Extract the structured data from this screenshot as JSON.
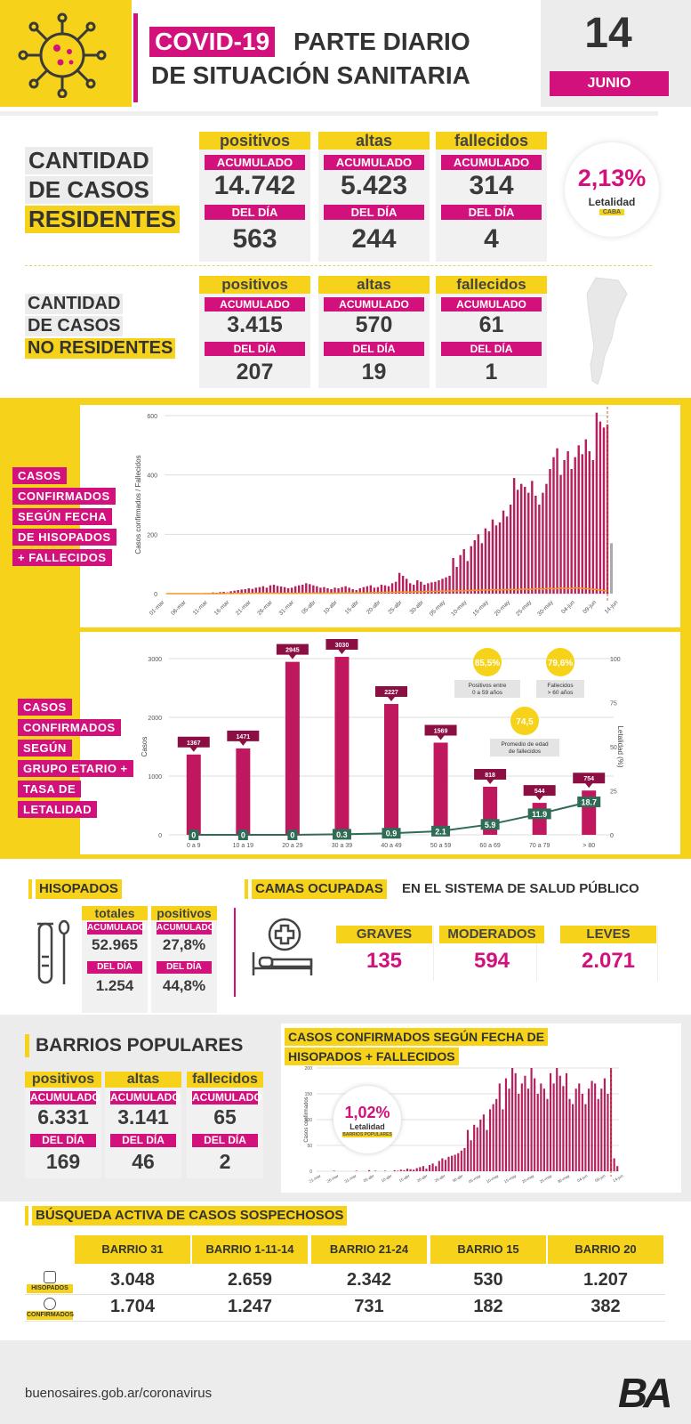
{
  "header": {
    "tag": "COVID-19",
    "title1": "PARTE DIARIO",
    "title2": "DE SITUACIÓN SANITARIA",
    "day": "14",
    "month": "JUNIO"
  },
  "residentes": {
    "title": [
      "CANTIDAD",
      "DE CASOS",
      "RESIDENTES"
    ],
    "cols": [
      {
        "head": "positivos",
        "acum_label": "ACUMULADO",
        "acum": "14.742",
        "dia_label": "DEL DÍA",
        "dia": "563"
      },
      {
        "head": "altas",
        "acum_label": "ACUMULADO",
        "acum": "5.423",
        "dia_label": "DEL DÍA",
        "dia": "244"
      },
      {
        "head": "fallecidos",
        "acum_label": "ACUMULADO",
        "acum": "314",
        "dia_label": "DEL DÍA",
        "dia": "4"
      }
    ],
    "letalidad": {
      "value": "2,13%",
      "label": "Letalidad",
      "tag": "CABA"
    }
  },
  "no_residentes": {
    "title": [
      "CANTIDAD",
      "DE CASOS",
      "NO RESIDENTES"
    ],
    "cols": [
      {
        "head": "positivos",
        "acum_label": "ACUMULADO",
        "acum": "3.415",
        "dia_label": "DEL DÍA",
        "dia": "207"
      },
      {
        "head": "altas",
        "acum_label": "ACUMULADO",
        "acum": "570",
        "dia_label": "DEL DÍA",
        "dia": "19"
      },
      {
        "head": "fallecidos",
        "acum_label": "ACUMULADO",
        "acum": "61",
        "dia_label": "DEL DÍA",
        "dia": "1"
      }
    ]
  },
  "chart1_label": [
    "CASOS",
    "CONFIRMADOS",
    "SEGÚN FECHA",
    "DE HISOPADOS",
    "+ FALLECIDOS"
  ],
  "chart2_label": [
    "CASOS",
    "CONFIRMADOS",
    "SEGÚN",
    "GRUPO ETARIO +",
    "TASA DE",
    "LETALIDAD"
  ],
  "chart_data": [
    {
      "type": "bar",
      "ylabel": "Casos confirmados / Fallecidos",
      "ylim": [
        0,
        600
      ],
      "yticks": [
        0,
        200,
        400,
        600
      ],
      "xticks": [
        "01-mar",
        "06-mar",
        "11-mar",
        "16-mar",
        "21-mar",
        "26-mar",
        "31-mar",
        "05-abr",
        "10-abr",
        "15-abr",
        "20-abr",
        "25-abr",
        "30-abr",
        "05-may",
        "10-may",
        "15-may",
        "20-may",
        "25-may",
        "30-may",
        "04-jun",
        "09-jun",
        "14-jun"
      ],
      "values": [
        0,
        0,
        0,
        0,
        0,
        0,
        0,
        0,
        0,
        1,
        0,
        2,
        2,
        4,
        3,
        5,
        6,
        4,
        8,
        10,
        12,
        14,
        15,
        18,
        16,
        20,
        22,
        25,
        20,
        28,
        30,
        26,
        24,
        22,
        18,
        20,
        25,
        28,
        30,
        35,
        32,
        28,
        25,
        20,
        22,
        18,
        15,
        20,
        18,
        22,
        25,
        20,
        15,
        12,
        18,
        22,
        25,
        28,
        20,
        22,
        30,
        28,
        25,
        35,
        40,
        70,
        60,
        50,
        35,
        30,
        45,
        40,
        30,
        35,
        38,
        40,
        45,
        50,
        55,
        60,
        120,
        90,
        130,
        150,
        110,
        160,
        180,
        200,
        170,
        220,
        210,
        250,
        230,
        240,
        280,
        260,
        300,
        390,
        350,
        370,
        360,
        340,
        380,
        330,
        300,
        340,
        370,
        420,
        460,
        490,
        400,
        450,
        480,
        420,
        460,
        500,
        470,
        520,
        480,
        450,
        610,
        580,
        560,
        570
      ],
      "deaths": [
        0,
        0,
        0,
        0,
        0,
        0,
        0,
        0,
        0,
        0,
        0,
        0,
        0,
        0,
        0,
        0,
        0,
        1,
        0,
        1,
        1,
        0,
        1,
        1,
        1,
        2,
        1,
        2,
        1,
        2,
        1,
        2,
        1,
        1,
        2,
        1,
        1,
        2,
        1,
        2,
        1,
        2,
        2,
        1,
        2,
        2,
        1,
        2,
        2,
        3,
        2,
        3,
        2,
        3,
        3,
        2,
        3,
        3,
        4,
        3,
        4,
        4,
        5,
        4,
        5,
        6,
        5,
        6,
        5,
        6,
        7,
        6,
        7,
        8,
        7,
        8,
        8,
        9,
        8,
        9,
        10,
        9,
        10,
        9,
        11,
        10,
        12,
        11,
        12,
        13,
        12,
        14,
        13,
        12,
        14,
        13,
        15,
        14,
        13,
        15,
        16,
        14,
        15,
        17,
        16,
        15,
        17,
        18,
        16,
        17,
        19,
        18,
        17,
        18,
        20,
        19,
        18,
        17,
        16,
        15,
        14,
        12,
        10,
        8
      ],
      "series_names": [
        "Casos confirmados",
        "Fallecidos"
      ]
    },
    {
      "type": "bar",
      "ylabel": "Casos",
      "y2label": "Letalidad (%)",
      "ylim": [
        0,
        3000
      ],
      "y2lim": [
        0,
        100
      ],
      "yticks": [
        0,
        1000,
        2000,
        3000
      ],
      "y2ticks": [
        0,
        25,
        50,
        75,
        100
      ],
      "categories": [
        "0 a 9",
        "10 a 19",
        "20 a 29",
        "30 a 39",
        "40 a 49",
        "50 a 59",
        "60 a 69",
        "70 a 79",
        "> 80"
      ],
      "values": [
        1367,
        1471,
        2945,
        3030,
        2227,
        1569,
        818,
        544,
        754
      ],
      "letalidad": [
        0,
        0,
        0,
        0.3,
        0.9,
        2.1,
        5.9,
        11.9,
        18.7
      ],
      "letalidad_labels": [
        "0",
        "0",
        "0",
        "0.3",
        "0.9",
        "2.1",
        "5.9",
        "11.9",
        "18.7"
      ],
      "annotations": [
        {
          "value": "85,5%",
          "text": [
            "Positivos entre",
            "0 a 59 años"
          ]
        },
        {
          "value": "79,6%",
          "text": [
            "Fallecidos",
            "> 60 años"
          ]
        },
        {
          "value": "74,5",
          "text": [
            "Promedio de edad",
            "de fallecidos"
          ]
        }
      ]
    },
    {
      "type": "bar",
      "ylabel": "Casos confirmados",
      "ylim": [
        0,
        200
      ],
      "yticks": [
        0,
        50,
        100,
        150,
        200
      ],
      "xticks": [
        "21-mar",
        "26-mar",
        "31-mar",
        "05-abr",
        "10-abr",
        "15-abr",
        "20-abr",
        "25-abr",
        "30-abr",
        "05-may",
        "10-may",
        "15-may",
        "20-may",
        "25-may",
        "30-may",
        "04-jun",
        "09-jun",
        "14-jun"
      ],
      "values": [
        0,
        0,
        0,
        0,
        0,
        1,
        0,
        0,
        0,
        0,
        0,
        0,
        1,
        0,
        0,
        0,
        2,
        0,
        1,
        0,
        0,
        1,
        0,
        0,
        2,
        1,
        3,
        2,
        5,
        4,
        3,
        6,
        8,
        10,
        5,
        12,
        15,
        10,
        20,
        25,
        22,
        28,
        30,
        32,
        35,
        40,
        45,
        80,
        60,
        90,
        85,
        100,
        110,
        80,
        120,
        130,
        140,
        170,
        120,
        180,
        160,
        200,
        190,
        150,
        170,
        185,
        160,
        200,
        180,
        150,
        170,
        160,
        140,
        190,
        170,
        200,
        185,
        165,
        190,
        140,
        130,
        160,
        170,
        150,
        130,
        160,
        175,
        170,
        140,
        160,
        180,
        150,
        200,
        25,
        10
      ],
      "letalidad": {
        "value": "1,02%",
        "label": "Letalidad",
        "tag": "BARRIOS POPULARES"
      }
    }
  ],
  "hisopados": {
    "title": "HISOPADOS",
    "cols": [
      {
        "head": "totales",
        "acum_label": "ACUMULADO",
        "acum": "52.965",
        "dia_label": "DEL DÍA",
        "dia": "1.254"
      },
      {
        "head": "positivos",
        "acum_label": "ACUMULADO",
        "acum": "27,8%",
        "dia_label": "DEL DÍA",
        "dia": "44,8%"
      }
    ]
  },
  "camas": {
    "title": "CAMAS OCUPADAS",
    "subtitle": "EN EL SISTEMA DE SALUD PÚBLICO",
    "items": [
      {
        "label": "GRAVES",
        "value": "135"
      },
      {
        "label": "MODERADOS",
        "value": "594"
      },
      {
        "label": "LEVES",
        "value": "2.071"
      }
    ]
  },
  "barrios": {
    "title": "BARRIOS POPULARES",
    "chart_title": [
      "CASOS CONFIRMADOS SEGÚN FECHA DE",
      "HISOPADOS + FALLECIDOS"
    ],
    "cols": [
      {
        "head": "positivos",
        "acum_label": "ACUMULADO",
        "acum": "6.331",
        "dia_label": "DEL DÍA",
        "dia": "169"
      },
      {
        "head": "altas",
        "acum_label": "ACUMULADO",
        "acum": "3.141",
        "dia_label": "DEL DÍA",
        "dia": "46"
      },
      {
        "head": "fallecidos",
        "acum_label": "ACUMULADO",
        "acum": "65",
        "dia_label": "DEL DÍA",
        "dia": "2"
      }
    ]
  },
  "busqueda": {
    "title": "BÚSQUEDA ACTIVA DE CASOS SOSPECHOSOS",
    "columns": [
      "BARRIO 31",
      "BARRIO 1-11-14",
      "BARRIO 21-24",
      "BARRIO 15",
      "BARRIO 20"
    ],
    "rows": [
      {
        "label": "HISOPADOS",
        "values": [
          "3.048",
          "2.659",
          "2.342",
          "530",
          "1.207"
        ]
      },
      {
        "label": "CONFIRMADOS",
        "values": [
          "1.704",
          "1.247",
          "731",
          "182",
          "382"
        ]
      }
    ]
  },
  "footer": {
    "url": "buenosaires.gob.ar/coronavirus",
    "logo": "BA"
  },
  "colors": {
    "accent": "#d3117c",
    "yellow": "#f6d21a",
    "bar": "#b51f5c",
    "line": "#2f6b55",
    "orange": "#f39a1e"
  }
}
